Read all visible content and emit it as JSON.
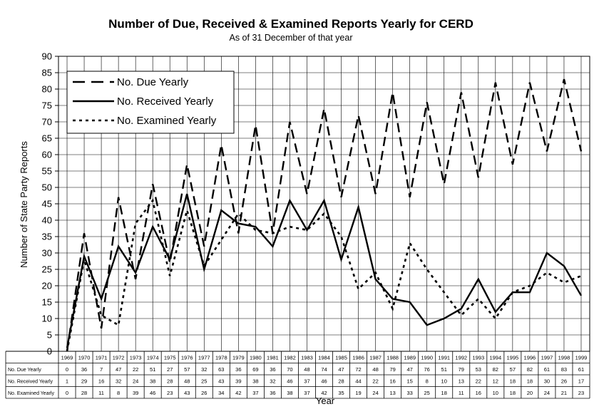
{
  "chart_data": {
    "type": "line",
    "title": "Number of Due, Received & Examined Reports Yearly for CERD",
    "subtitle": "As of 31 December of that year",
    "xlabel": "Year",
    "ylabel": "Number of State Party Reports",
    "ylim": [
      0,
      90
    ],
    "ytick_step": 5,
    "grid": true,
    "legend_position": "top-left",
    "categories": [
      "1969",
      "1970",
      "1971",
      "1972",
      "1973",
      "1974",
      "1975",
      "1976",
      "1977",
      "1978",
      "1979",
      "1980",
      "1981",
      "1982",
      "1983",
      "1984",
      "1985",
      "1986",
      "1987",
      "1988",
      "1989",
      "1990",
      "1991",
      "1992",
      "1993",
      "1994",
      "1995",
      "1996",
      "1997",
      "1998",
      "1999"
    ],
    "series": [
      {
        "name": "No. Due Yearly",
        "table_label": "No. Due Yearly",
        "style": "dashed",
        "values": [
          0,
          36,
          7,
          47,
          22,
          51,
          27,
          57,
          32,
          63,
          36,
          69,
          36,
          70,
          48,
          74,
          47,
          72,
          48,
          79,
          47,
          76,
          51,
          79,
          53,
          82,
          57,
          82,
          61,
          83,
          61
        ]
      },
      {
        "name": "No. Received Yearly",
        "table_label": "No. Received Yearly",
        "style": "solid",
        "values": [
          1,
          29,
          16,
          32,
          24,
          38,
          28,
          48,
          25,
          43,
          39,
          38,
          32,
          46,
          37,
          46,
          28,
          44,
          22,
          16,
          15,
          8,
          10,
          13,
          22,
          12,
          18,
          18,
          30,
          26,
          17
        ]
      },
      {
        "name": "No. Examined Yearly",
        "table_label": "No. Examined Yearly",
        "style": "dotted",
        "values": [
          0,
          28,
          11,
          8,
          39,
          46,
          23,
          43,
          26,
          34,
          42,
          37,
          36,
          38,
          37,
          42,
          35,
          19,
          24,
          13,
          33,
          25,
          18,
          11,
          16,
          10,
          18,
          20,
          24,
          21,
          23
        ]
      }
    ]
  }
}
